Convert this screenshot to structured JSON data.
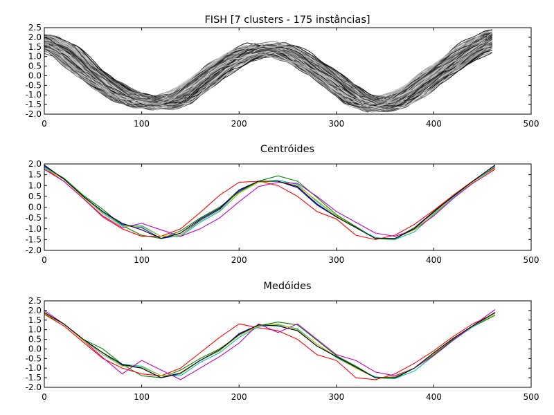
{
  "chart_data": [
    {
      "type": "line",
      "title": "FISH [7 clusters - 175 instâncias]",
      "xlim": [
        0,
        500
      ],
      "ylim": [
        -2.0,
        2.5
      ],
      "xticks": [
        0,
        100,
        200,
        300,
        400,
        500
      ],
      "yticks": [
        -2.0,
        -1.5,
        -1.0,
        -0.5,
        0.0,
        0.5,
        1.0,
        1.5,
        2.0,
        2.5
      ],
      "instance_count": 175,
      "grayscale": true,
      "x_max": 463,
      "template": {
        "x": [
          0,
          20,
          40,
          60,
          80,
          100,
          120,
          140,
          160,
          180,
          200,
          220,
          240,
          260,
          280,
          300,
          320,
          340,
          360,
          380,
          400,
          420,
          440,
          463
        ],
        "y": [
          1.8,
          1.3,
          0.4,
          -0.4,
          -1.0,
          -1.35,
          -1.45,
          -1.2,
          -0.4,
          0.4,
          1.0,
          1.35,
          1.35,
          1.0,
          0.3,
          -0.4,
          -1.2,
          -1.55,
          -1.4,
          -0.8,
          0.0,
          0.7,
          1.4,
          2.0
        ]
      }
    },
    {
      "type": "line",
      "title": "Centróides",
      "xlim": [
        0,
        500
      ],
      "ylim": [
        -2.0,
        2.0
      ],
      "xticks": [
        0,
        100,
        200,
        300,
        400,
        500
      ],
      "yticks": [
        -2.0,
        -1.5,
        -1.0,
        -0.5,
        0.0,
        0.5,
        1.0,
        1.5,
        2.0
      ],
      "series": [
        {
          "color": "#0000ff",
          "x": [
            0,
            20,
            40,
            60,
            80,
            100,
            120,
            140,
            160,
            180,
            200,
            220,
            240,
            260,
            280,
            300,
            320,
            340,
            360,
            380,
            400,
            420,
            440,
            463
          ],
          "y": [
            1.9,
            1.3,
            0.5,
            -0.2,
            -0.8,
            -0.95,
            -1.45,
            -1.3,
            -0.6,
            -0.1,
            0.75,
            1.2,
            1.2,
            0.9,
            0.1,
            -0.45,
            -0.9,
            -1.45,
            -1.45,
            -0.95,
            -0.2,
            0.55,
            1.2,
            1.95
          ]
        },
        {
          "color": "#008000",
          "x": [
            0,
            20,
            40,
            60,
            80,
            100,
            120,
            140,
            160,
            180,
            200,
            220,
            240,
            260,
            280,
            300,
            320,
            340,
            360,
            380,
            400,
            420,
            440,
            463
          ],
          "y": [
            1.85,
            1.35,
            0.55,
            -0.1,
            -0.85,
            -1.3,
            -1.45,
            -1.1,
            -0.5,
            0.0,
            0.7,
            1.2,
            1.45,
            1.2,
            0.45,
            -0.35,
            -0.9,
            -1.45,
            -1.5,
            -0.95,
            -0.25,
            0.55,
            1.2,
            1.8
          ]
        },
        {
          "color": "#ff0000",
          "x": [
            0,
            20,
            40,
            60,
            80,
            100,
            120,
            140,
            160,
            180,
            200,
            220,
            240,
            260,
            280,
            300,
            320,
            340,
            360,
            380,
            400,
            420,
            440,
            463
          ],
          "y": [
            1.8,
            1.2,
            0.4,
            -0.45,
            -1.0,
            -1.35,
            -1.35,
            -1.0,
            -0.25,
            0.55,
            1.15,
            1.2,
            1.0,
            0.5,
            -0.2,
            -0.55,
            -1.3,
            -1.5,
            -1.3,
            -0.8,
            -0.15,
            0.55,
            1.2,
            1.85
          ]
        },
        {
          "color": "#00bfbf",
          "x": [
            0,
            20,
            40,
            60,
            80,
            100,
            120,
            140,
            160,
            180,
            200,
            220,
            240,
            260,
            280,
            300,
            320,
            340,
            360,
            380,
            400,
            420,
            440,
            463
          ],
          "y": [
            1.85,
            1.3,
            0.5,
            -0.25,
            -0.85,
            -0.85,
            -1.35,
            -1.35,
            -0.7,
            -0.2,
            0.65,
            1.15,
            1.25,
            1.05,
            0.25,
            -0.4,
            -0.95,
            -1.4,
            -1.5,
            -1.15,
            -0.35,
            0.45,
            1.15,
            1.9
          ]
        },
        {
          "color": "#bf00bf",
          "x": [
            0,
            20,
            40,
            60,
            80,
            100,
            120,
            140,
            160,
            180,
            200,
            220,
            240,
            260,
            280,
            300,
            320,
            340,
            360,
            380,
            400,
            420,
            440,
            463
          ],
          "y": [
            1.75,
            1.2,
            0.4,
            -0.4,
            -0.95,
            -0.75,
            -1.05,
            -1.35,
            -1.0,
            -0.5,
            0.25,
            0.95,
            1.15,
            1.1,
            0.5,
            -0.2,
            -0.7,
            -1.2,
            -1.35,
            -1.05,
            -0.4,
            0.4,
            1.1,
            1.75
          ]
        },
        {
          "color": "#bfbf00",
          "x": [
            0,
            20,
            40,
            60,
            80,
            100,
            120,
            140,
            160,
            180,
            200,
            220,
            240,
            260,
            280,
            300,
            320,
            340,
            360,
            380,
            400,
            420,
            440,
            463
          ],
          "y": [
            1.8,
            1.3,
            0.45,
            -0.3,
            -0.9,
            -0.9,
            -1.35,
            -1.3,
            -0.65,
            -0.15,
            0.65,
            1.15,
            1.2,
            1.0,
            0.3,
            -0.4,
            -0.95,
            -1.45,
            -1.45,
            -1.05,
            -0.3,
            0.5,
            1.15,
            1.8
          ]
        },
        {
          "color": "#000000",
          "x": [
            0,
            20,
            40,
            60,
            80,
            100,
            120,
            140,
            160,
            180,
            200,
            220,
            240,
            260,
            280,
            300,
            320,
            340,
            360,
            380,
            400,
            420,
            440,
            463
          ],
          "y": [
            1.95,
            1.3,
            0.5,
            -0.2,
            -0.75,
            -1.05,
            -1.45,
            -1.2,
            -0.55,
            -0.05,
            0.8,
            1.2,
            1.2,
            0.95,
            0.15,
            -0.45,
            -0.95,
            -1.45,
            -1.45,
            -1.0,
            -0.2,
            0.5,
            1.2,
            1.95
          ]
        }
      ]
    },
    {
      "type": "line",
      "title": "Medóides",
      "xlim": [
        0,
        500
      ],
      "ylim": [
        -2.0,
        2.5
      ],
      "xticks": [
        0,
        100,
        200,
        300,
        400,
        500
      ],
      "yticks": [
        -2.0,
        -1.5,
        -1.0,
        -0.5,
        0.0,
        0.5,
        1.0,
        1.5,
        2.0,
        2.5
      ],
      "series": [
        {
          "color": "#0000ff",
          "x": [
            0,
            20,
            40,
            60,
            80,
            100,
            120,
            140,
            160,
            180,
            200,
            220,
            240,
            260,
            280,
            300,
            320,
            340,
            360,
            380,
            400,
            420,
            440,
            463
          ],
          "y": [
            1.85,
            1.3,
            0.5,
            -0.2,
            -0.85,
            -1.0,
            -1.5,
            -1.3,
            -0.6,
            -0.1,
            0.8,
            1.25,
            1.2,
            0.95,
            0.15,
            -0.4,
            -0.95,
            -1.5,
            -1.45,
            -1.0,
            -0.2,
            0.55,
            1.2,
            1.9
          ]
        },
        {
          "color": "#008000",
          "x": [
            0,
            20,
            40,
            60,
            80,
            100,
            120,
            140,
            160,
            180,
            200,
            220,
            240,
            260,
            280,
            300,
            320,
            340,
            360,
            380,
            400,
            420,
            440,
            463
          ],
          "y": [
            1.8,
            1.3,
            0.5,
            0.0,
            -0.8,
            -1.4,
            -1.5,
            -1.1,
            -0.5,
            0.0,
            0.7,
            1.2,
            1.4,
            1.25,
            0.45,
            -0.35,
            -0.9,
            -1.5,
            -1.55,
            -1.0,
            -0.3,
            0.5,
            1.15,
            1.75
          ]
        },
        {
          "color": "#ff0000",
          "x": [
            0,
            20,
            40,
            60,
            80,
            100,
            120,
            140,
            160,
            180,
            200,
            220,
            240,
            260,
            280,
            300,
            320,
            340,
            360,
            380,
            400,
            420,
            440,
            463
          ],
          "y": [
            1.8,
            1.2,
            0.35,
            -0.5,
            -1.0,
            -1.3,
            -1.4,
            -1.0,
            -0.2,
            0.6,
            1.3,
            1.1,
            0.95,
            0.5,
            -0.3,
            -0.6,
            -1.5,
            -1.6,
            -1.3,
            -0.75,
            -0.1,
            0.65,
            1.3,
            1.85
          ]
        },
        {
          "color": "#00bfbf",
          "x": [
            0,
            20,
            40,
            60,
            80,
            100,
            120,
            140,
            160,
            180,
            200,
            220,
            240,
            260,
            280,
            300,
            320,
            340,
            360,
            380,
            400,
            420,
            440,
            463
          ],
          "y": [
            1.85,
            1.3,
            0.5,
            -0.3,
            -0.8,
            -0.9,
            -1.4,
            -1.4,
            -0.7,
            -0.2,
            0.6,
            1.15,
            1.25,
            1.05,
            0.25,
            -0.45,
            -1.0,
            -1.45,
            -1.55,
            -1.15,
            -0.35,
            0.45,
            1.15,
            1.85
          ]
        },
        {
          "color": "#bf00bf",
          "x": [
            0,
            20,
            40,
            60,
            80,
            100,
            120,
            140,
            160,
            180,
            200,
            220,
            240,
            260,
            280,
            300,
            320,
            340,
            360,
            380,
            400,
            420,
            440,
            463
          ],
          "y": [
            2.0,
            1.3,
            0.45,
            -0.45,
            -1.3,
            -0.6,
            -1.1,
            -1.6,
            -1.0,
            -0.4,
            0.3,
            1.3,
            0.85,
            1.3,
            0.5,
            -0.3,
            -0.6,
            -1.2,
            -1.4,
            -1.0,
            -0.35,
            0.45,
            1.2,
            2.05
          ]
        },
        {
          "color": "#bfbf00",
          "x": [
            0,
            20,
            40,
            60,
            80,
            100,
            120,
            140,
            160,
            180,
            200,
            220,
            240,
            260,
            280,
            300,
            320,
            340,
            360,
            380,
            400,
            420,
            440,
            463
          ],
          "y": [
            1.85,
            1.3,
            0.45,
            -0.3,
            -0.9,
            -0.95,
            -1.4,
            -1.3,
            -0.6,
            -0.1,
            0.7,
            1.2,
            1.3,
            1.0,
            0.25,
            -0.4,
            -1.0,
            -1.5,
            -1.45,
            -1.0,
            -0.25,
            0.55,
            1.2,
            1.85
          ]
        },
        {
          "color": "#000000",
          "x": [
            0,
            20,
            40,
            60,
            80,
            100,
            120,
            140,
            160,
            180,
            200,
            220,
            240,
            260,
            280,
            300,
            320,
            340,
            360,
            380,
            400,
            420,
            440,
            463
          ],
          "y": [
            1.9,
            1.3,
            0.5,
            -0.2,
            -0.8,
            -1.0,
            -1.5,
            -1.25,
            -0.6,
            -0.05,
            0.75,
            1.25,
            1.2,
            0.95,
            0.15,
            -0.4,
            -0.95,
            -1.5,
            -1.5,
            -1.0,
            -0.2,
            0.55,
            1.2,
            1.9
          ]
        }
      ]
    }
  ]
}
